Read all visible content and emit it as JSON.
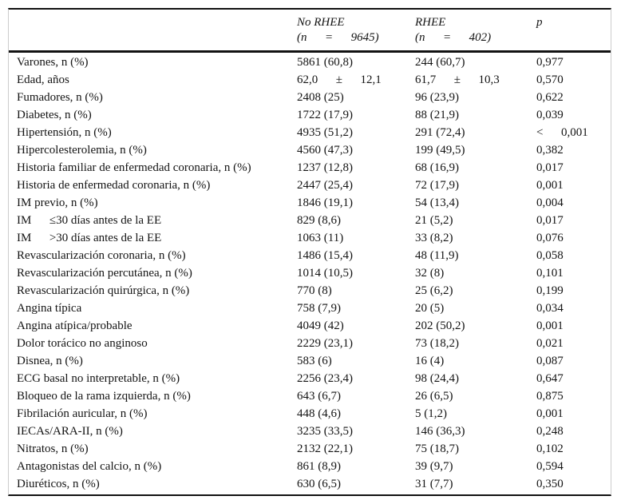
{
  "table": {
    "header": {
      "no_rhee": {
        "line1": "No RHEE",
        "line2": "(n  =  9645)"
      },
      "rhee": {
        "line1": "RHEE",
        "line2": "(n  =  402)"
      },
      "p": "p"
    },
    "columns": [
      "",
      "No RHEE (n = 9645)",
      "RHEE (n = 402)",
      "p"
    ],
    "rows": [
      {
        "label": "Varones, n (%)",
        "no_rhee": "5861 (60,8)",
        "rhee": "244 (60,7)",
        "p": "0,977"
      },
      {
        "label": "Edad, años",
        "no_rhee": "62,0  ±  12,1",
        "rhee": "61,7  ±  10,3",
        "p": "0,570"
      },
      {
        "label": "Fumadores, n (%)",
        "no_rhee": "2408 (25)",
        "rhee": "96 (23,9)",
        "p": "0,622"
      },
      {
        "label": "Diabetes, n (%)",
        "no_rhee": "1722 (17,9)",
        "rhee": "88 (21,9)",
        "p": "0,039"
      },
      {
        "label": "Hipertensión, n (%)",
        "no_rhee": "4935 (51,2)",
        "rhee": "291 (72,4)",
        "p": "<  0,001"
      },
      {
        "label": "Hipercolesterolemia, n (%)",
        "no_rhee": "4560 (47,3)",
        "rhee": "199 (49,5)",
        "p": "0,382"
      },
      {
        "label": "Historia familiar de enfermedad coronaria, n (%)",
        "no_rhee": "1237 (12,8)",
        "rhee": "68 (16,9)",
        "p": "0,017"
      },
      {
        "label": "Historia de enfermedad coronaria, n (%)",
        "no_rhee": "2447 (25,4)",
        "rhee": "72 (17,9)",
        "p": "0,001"
      },
      {
        "label": "IM previo, n (%)",
        "no_rhee": "1846 (19,1)",
        "rhee": "54 (13,4)",
        "p": "0,004"
      },
      {
        "label": "IM  ≤30 días antes de la EE",
        "no_rhee": "829 (8,6)",
        "rhee": "21 (5,2)",
        "p": "0,017"
      },
      {
        "label": "IM  >30 días antes de la EE",
        "no_rhee": "1063 (11)",
        "rhee": "33 (8,2)",
        "p": "0,076"
      },
      {
        "label": "Revascularización coronaria, n (%)",
        "no_rhee": "1486 (15,4)",
        "rhee": "48 (11,9)",
        "p": "0,058"
      },
      {
        "label": "Revascularización percutánea, n (%)",
        "no_rhee": "1014 (10,5)",
        "rhee": "32 (8)",
        "p": "0,101"
      },
      {
        "label": "Revascularización quirúrgica, n (%)",
        "no_rhee": "770 (8)",
        "rhee": "25 (6,2)",
        "p": "0,199"
      },
      {
        "label": "Angina típica",
        "no_rhee": "758 (7,9)",
        "rhee": "20 (5)",
        "p": "0,034"
      },
      {
        "label": "Angina atípica/probable",
        "no_rhee": "4049 (42)",
        "rhee": "202 (50,2)",
        "p": "0,001"
      },
      {
        "label": "Dolor torácico no anginoso",
        "no_rhee": "2229 (23,1)",
        "rhee": "73 (18,2)",
        "p": "0,021"
      },
      {
        "label": "Disnea, n (%)",
        "no_rhee": "583 (6)",
        "rhee": "16 (4)",
        "p": "0,087"
      },
      {
        "label": "ECG basal no interpretable, n (%)",
        "no_rhee": "2256 (23,4)",
        "rhee": "98 (24,4)",
        "p": "0,647"
      },
      {
        "label": "Bloqueo de la rama izquierda, n (%)",
        "no_rhee": "643 (6,7)",
        "rhee": "26 (6,5)",
        "p": "0,875"
      },
      {
        "label": "Fibrilación auricular, n (%)",
        "no_rhee": "448 (4,6)",
        "rhee": "5 (1,2)",
        "p": "0,001"
      },
      {
        "label": "IECAs/ARA-II, n (%)",
        "no_rhee": "3235 (33,5)",
        "rhee": "146 (36,3)",
        "p": "0,248"
      },
      {
        "label": "Nitratos, n (%)",
        "no_rhee": "2132 (22,1)",
        "rhee": "75 (18,7)",
        "p": "0,102"
      },
      {
        "label": "Antagonistas del calcio, n (%)",
        "no_rhee": "861 (8,9)",
        "rhee": "39 (9,7)",
        "p": "0,594"
      },
      {
        "label": "Diuréticos, n (%)",
        "no_rhee": "630 (6,5)",
        "rhee": "31 (7,7)",
        "p": "0,350"
      }
    ]
  }
}
